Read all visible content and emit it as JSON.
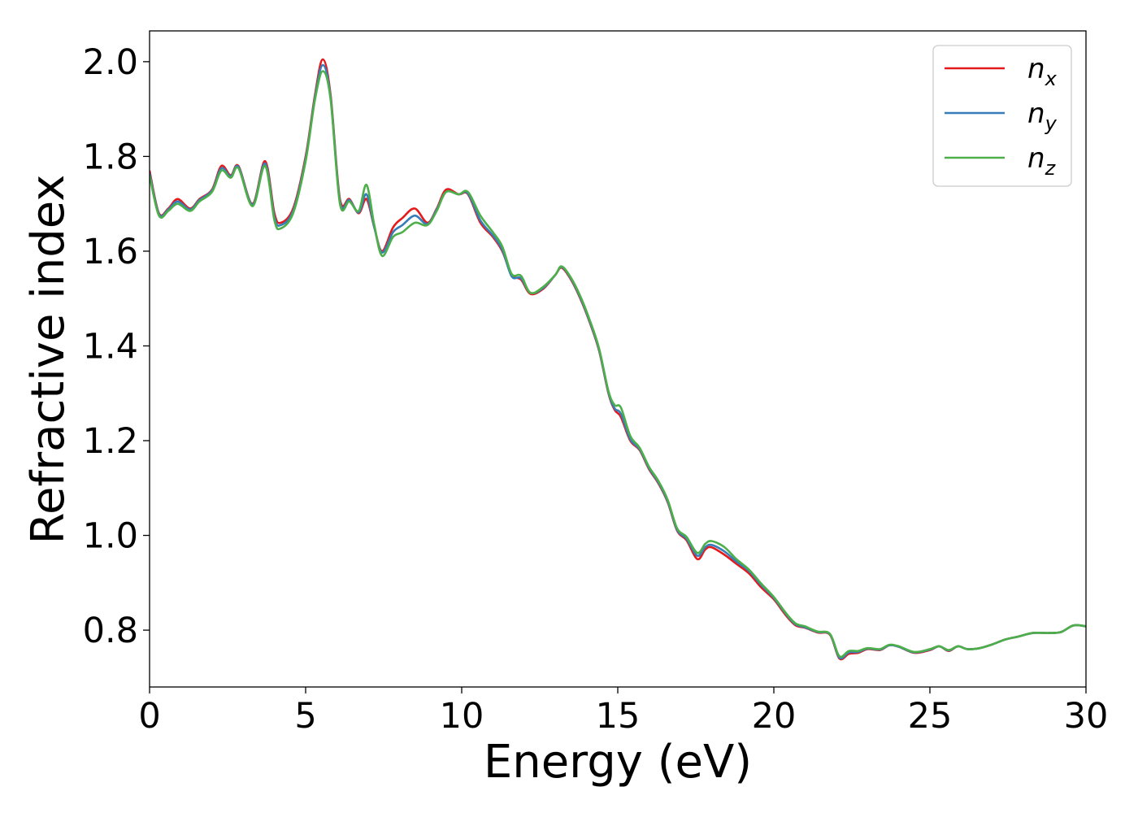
{
  "chart_data": {
    "type": "line",
    "title": "",
    "xlabel": "Energy (eV)",
    "ylabel": "Refractive index",
    "xlim": [
      0,
      30
    ],
    "ylim": [
      0.68,
      2.065
    ],
    "xticks": [
      0,
      5,
      10,
      15,
      20,
      25,
      30
    ],
    "xtick_labels": [
      "0",
      "5",
      "10",
      "15",
      "20",
      "25",
      "30"
    ],
    "yticks": [
      0.8,
      1.0,
      1.2,
      1.4,
      1.6,
      1.8,
      2.0
    ],
    "ytick_labels": [
      "0.8",
      "1.0",
      "1.2",
      "1.4",
      "1.6",
      "1.8",
      "2.0"
    ],
    "grid": false,
    "legend_position": "top-right",
    "series": [
      {
        "name": "n_x",
        "legend_main": "n",
        "legend_sub": "x",
        "color": "#e41a1c",
        "points": [
          [
            0,
            1.77
          ],
          [
            0.3,
            1.68
          ],
          [
            0.6,
            1.69
          ],
          [
            0.9,
            1.71
          ],
          [
            1.3,
            1.69
          ],
          [
            1.6,
            1.71
          ],
          [
            2.0,
            1.73
          ],
          [
            2.3,
            1.78
          ],
          [
            2.6,
            1.76
          ],
          [
            2.85,
            1.78
          ],
          [
            3.3,
            1.7
          ],
          [
            3.7,
            1.79
          ],
          [
            4.0,
            1.68
          ],
          [
            4.2,
            1.66
          ],
          [
            4.6,
            1.69
          ],
          [
            5.0,
            1.8
          ],
          [
            5.3,
            1.93
          ],
          [
            5.55,
            2.005
          ],
          [
            5.8,
            1.93
          ],
          [
            6.1,
            1.71
          ],
          [
            6.4,
            1.71
          ],
          [
            6.7,
            1.68
          ],
          [
            6.95,
            1.71
          ],
          [
            7.2,
            1.65
          ],
          [
            7.45,
            1.6
          ],
          [
            7.8,
            1.65
          ],
          [
            8.1,
            1.67
          ],
          [
            8.5,
            1.69
          ],
          [
            8.9,
            1.66
          ],
          [
            9.2,
            1.69
          ],
          [
            9.5,
            1.73
          ],
          [
            9.9,
            1.72
          ],
          [
            10.2,
            1.72
          ],
          [
            10.6,
            1.66
          ],
          [
            11.0,
            1.63
          ],
          [
            11.3,
            1.6
          ],
          [
            11.6,
            1.55
          ],
          [
            11.9,
            1.54
          ],
          [
            12.2,
            1.51
          ],
          [
            12.6,
            1.52
          ],
          [
            13.0,
            1.55
          ],
          [
            13.2,
            1.565
          ],
          [
            13.5,
            1.54
          ],
          [
            13.8,
            1.5
          ],
          [
            14.1,
            1.45
          ],
          [
            14.4,
            1.39
          ],
          [
            14.7,
            1.3
          ],
          [
            14.9,
            1.265
          ],
          [
            15.1,
            1.25
          ],
          [
            15.4,
            1.2
          ],
          [
            15.7,
            1.18
          ],
          [
            16.0,
            1.14
          ],
          [
            16.3,
            1.11
          ],
          [
            16.6,
            1.07
          ],
          [
            16.9,
            1.01
          ],
          [
            17.2,
            0.99
          ],
          [
            17.55,
            0.95
          ],
          [
            17.8,
            0.97
          ],
          [
            18.0,
            0.975
          ],
          [
            18.4,
            0.96
          ],
          [
            18.8,
            0.94
          ],
          [
            19.2,
            0.92
          ],
          [
            19.6,
            0.89
          ],
          [
            20.0,
            0.865
          ],
          [
            20.4,
            0.83
          ],
          [
            20.7,
            0.81
          ],
          [
            21.0,
            0.805
          ],
          [
            21.4,
            0.795
          ],
          [
            21.8,
            0.79
          ],
          [
            22.1,
            0.74
          ],
          [
            22.4,
            0.75
          ],
          [
            22.7,
            0.752
          ],
          [
            23.0,
            0.76
          ],
          [
            23.4,
            0.758
          ],
          [
            23.7,
            0.768
          ],
          [
            24.0,
            0.765
          ],
          [
            24.5,
            0.752
          ],
          [
            25.0,
            0.758
          ],
          [
            25.3,
            0.766
          ],
          [
            25.6,
            0.756
          ],
          [
            25.9,
            0.766
          ],
          [
            26.2,
            0.76
          ],
          [
            26.6,
            0.762
          ],
          [
            27.0,
            0.77
          ],
          [
            27.4,
            0.78
          ],
          [
            27.8,
            0.786
          ],
          [
            28.3,
            0.794
          ],
          [
            28.8,
            0.794
          ],
          [
            29.2,
            0.796
          ],
          [
            29.6,
            0.81
          ],
          [
            30.0,
            0.808
          ]
        ]
      },
      {
        "name": "n_y",
        "legend_main": "n",
        "legend_sub": "y",
        "color": "#377eb8",
        "points": [
          [
            0,
            1.765
          ],
          [
            0.3,
            1.678
          ],
          [
            0.6,
            1.688
          ],
          [
            0.9,
            1.705
          ],
          [
            1.3,
            1.688
          ],
          [
            1.6,
            1.708
          ],
          [
            2.0,
            1.728
          ],
          [
            2.3,
            1.775
          ],
          [
            2.6,
            1.758
          ],
          [
            2.85,
            1.778
          ],
          [
            3.3,
            1.698
          ],
          [
            3.7,
            1.785
          ],
          [
            4.0,
            1.672
          ],
          [
            4.2,
            1.655
          ],
          [
            4.6,
            1.685
          ],
          [
            5.0,
            1.795
          ],
          [
            5.3,
            1.925
          ],
          [
            5.55,
            1.993
          ],
          [
            5.8,
            1.925
          ],
          [
            6.1,
            1.705
          ],
          [
            6.4,
            1.708
          ],
          [
            6.7,
            1.682
          ],
          [
            6.95,
            1.72
          ],
          [
            7.2,
            1.65
          ],
          [
            7.45,
            1.597
          ],
          [
            7.8,
            1.64
          ],
          [
            8.1,
            1.655
          ],
          [
            8.5,
            1.675
          ],
          [
            8.9,
            1.657
          ],
          [
            9.2,
            1.688
          ],
          [
            9.5,
            1.725
          ],
          [
            9.9,
            1.72
          ],
          [
            10.2,
            1.722
          ],
          [
            10.6,
            1.665
          ],
          [
            11.0,
            1.633
          ],
          [
            11.3,
            1.603
          ],
          [
            11.6,
            1.547
          ],
          [
            11.9,
            1.543
          ],
          [
            12.2,
            1.512
          ],
          [
            12.6,
            1.522
          ],
          [
            13.0,
            1.55
          ],
          [
            13.2,
            1.567
          ],
          [
            13.5,
            1.542
          ],
          [
            13.8,
            1.502
          ],
          [
            14.1,
            1.452
          ],
          [
            14.4,
            1.392
          ],
          [
            14.7,
            1.302
          ],
          [
            14.9,
            1.268
          ],
          [
            15.1,
            1.257
          ],
          [
            15.4,
            1.203
          ],
          [
            15.7,
            1.182
          ],
          [
            16.0,
            1.142
          ],
          [
            16.3,
            1.112
          ],
          [
            16.6,
            1.072
          ],
          [
            16.9,
            1.012
          ],
          [
            17.2,
            0.993
          ],
          [
            17.55,
            0.957
          ],
          [
            17.8,
            0.975
          ],
          [
            18.0,
            0.98
          ],
          [
            18.4,
            0.967
          ],
          [
            18.8,
            0.945
          ],
          [
            19.2,
            0.925
          ],
          [
            19.6,
            0.895
          ],
          [
            20.0,
            0.868
          ],
          [
            20.4,
            0.833
          ],
          [
            20.7,
            0.812
          ],
          [
            21.0,
            0.806
          ],
          [
            21.4,
            0.796
          ],
          [
            21.8,
            0.791
          ],
          [
            22.1,
            0.742
          ],
          [
            22.4,
            0.753
          ],
          [
            22.7,
            0.754
          ],
          [
            23.0,
            0.761
          ],
          [
            23.4,
            0.759
          ],
          [
            23.7,
            0.768
          ],
          [
            24.0,
            0.765
          ],
          [
            24.5,
            0.753
          ],
          [
            25.0,
            0.759
          ],
          [
            25.3,
            0.766
          ],
          [
            25.6,
            0.757
          ],
          [
            25.9,
            0.766
          ],
          [
            26.2,
            0.76
          ],
          [
            26.6,
            0.762
          ],
          [
            27.0,
            0.77
          ],
          [
            27.4,
            0.78
          ],
          [
            27.8,
            0.786
          ],
          [
            28.3,
            0.794
          ],
          [
            28.8,
            0.794
          ],
          [
            29.2,
            0.796
          ],
          [
            29.6,
            0.81
          ],
          [
            30.0,
            0.808
          ]
        ]
      },
      {
        "name": "n_z",
        "legend_main": "n",
        "legend_sub": "z",
        "color": "#4daf4a",
        "points": [
          [
            0,
            1.76
          ],
          [
            0.3,
            1.675
          ],
          [
            0.6,
            1.685
          ],
          [
            0.9,
            1.7
          ],
          [
            1.3,
            1.685
          ],
          [
            1.6,
            1.705
          ],
          [
            2.0,
            1.725
          ],
          [
            2.3,
            1.77
          ],
          [
            2.6,
            1.755
          ],
          [
            2.85,
            1.775
          ],
          [
            3.3,
            1.695
          ],
          [
            3.7,
            1.78
          ],
          [
            4.0,
            1.665
          ],
          [
            4.2,
            1.648
          ],
          [
            4.6,
            1.68
          ],
          [
            5.0,
            1.79
          ],
          [
            5.3,
            1.92
          ],
          [
            5.55,
            1.98
          ],
          [
            5.8,
            1.92
          ],
          [
            6.1,
            1.7
          ],
          [
            6.4,
            1.705
          ],
          [
            6.7,
            1.685
          ],
          [
            6.95,
            1.74
          ],
          [
            7.2,
            1.655
          ],
          [
            7.45,
            1.59
          ],
          [
            7.8,
            1.63
          ],
          [
            8.1,
            1.64
          ],
          [
            8.5,
            1.66
          ],
          [
            8.9,
            1.655
          ],
          [
            9.2,
            1.685
          ],
          [
            9.5,
            1.725
          ],
          [
            9.9,
            1.72
          ],
          [
            10.2,
            1.725
          ],
          [
            10.6,
            1.675
          ],
          [
            11.0,
            1.64
          ],
          [
            11.3,
            1.61
          ],
          [
            11.6,
            1.552
          ],
          [
            11.9,
            1.548
          ],
          [
            12.2,
            1.512
          ],
          [
            12.6,
            1.524
          ],
          [
            13.0,
            1.55
          ],
          [
            13.2,
            1.568
          ],
          [
            13.5,
            1.544
          ],
          [
            13.8,
            1.505
          ],
          [
            14.1,
            1.455
          ],
          [
            14.4,
            1.395
          ],
          [
            14.7,
            1.305
          ],
          [
            14.9,
            1.275
          ],
          [
            15.1,
            1.27
          ],
          [
            15.4,
            1.21
          ],
          [
            15.7,
            1.185
          ],
          [
            16.0,
            1.145
          ],
          [
            16.3,
            1.115
          ],
          [
            16.6,
            1.075
          ],
          [
            16.9,
            1.015
          ],
          [
            17.2,
            0.997
          ],
          [
            17.55,
            0.963
          ],
          [
            17.8,
            0.982
          ],
          [
            18.0,
            0.988
          ],
          [
            18.4,
            0.976
          ],
          [
            18.8,
            0.95
          ],
          [
            19.2,
            0.928
          ],
          [
            19.6,
            0.898
          ],
          [
            20.0,
            0.87
          ],
          [
            20.4,
            0.835
          ],
          [
            20.7,
            0.814
          ],
          [
            21.0,
            0.808
          ],
          [
            21.4,
            0.797
          ],
          [
            21.8,
            0.792
          ],
          [
            22.1,
            0.745
          ],
          [
            22.4,
            0.756
          ],
          [
            22.7,
            0.756
          ],
          [
            23.0,
            0.762
          ],
          [
            23.4,
            0.76
          ],
          [
            23.7,
            0.769
          ],
          [
            24.0,
            0.766
          ],
          [
            24.5,
            0.754
          ],
          [
            25.0,
            0.76
          ],
          [
            25.3,
            0.766
          ],
          [
            25.6,
            0.758
          ],
          [
            25.9,
            0.766
          ],
          [
            26.2,
            0.76
          ],
          [
            26.6,
            0.762
          ],
          [
            27.0,
            0.77
          ],
          [
            27.4,
            0.78
          ],
          [
            27.8,
            0.786
          ],
          [
            28.3,
            0.794
          ],
          [
            28.8,
            0.794
          ],
          [
            29.2,
            0.796
          ],
          [
            29.6,
            0.81
          ],
          [
            30.0,
            0.808
          ]
        ]
      }
    ]
  }
}
